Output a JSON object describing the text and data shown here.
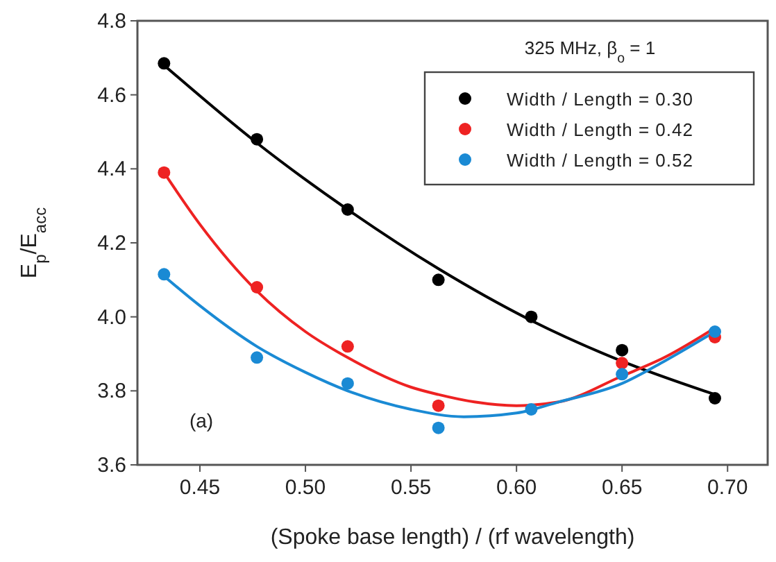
{
  "chart_data": {
    "type": "scatter",
    "xlabel": "(Spoke base length) / (rf wavelength)",
    "ylabel": "E$_{p}$/E$_{acc}$",
    "annotations": [
      "325 MHz, β$_{o}$ = 1",
      "(a)"
    ],
    "x": [
      0.433,
      0.477,
      0.52,
      0.563,
      0.607,
      0.65,
      0.694
    ],
    "series": [
      {
        "name": "Width / Length = 0.30",
        "color": "#000000",
        "values": [
          4.685,
          4.48,
          4.29,
          4.1,
          4.0,
          3.91,
          3.78
        ]
      },
      {
        "name": "Width / Length = 0.42",
        "color": "#ee2222",
        "values": [
          4.39,
          4.08,
          3.92,
          3.76,
          null,
          3.875,
          3.945
        ]
      },
      {
        "name": "Width / Length = 0.52",
        "color": "#1a8ad4",
        "values": [
          4.115,
          3.89,
          3.82,
          3.7,
          3.75,
          3.845,
          3.96
        ]
      },
      {
        "type": "line",
        "marker": "none",
        "color": "#000000",
        "x": [
          0.433,
          0.477,
          0.52,
          0.563,
          0.607,
          0.65,
          0.694
        ],
        "values": [
          4.68,
          4.47,
          4.29,
          4.13,
          3.99,
          3.88,
          3.79
        ]
      },
      {
        "type": "line",
        "marker": "none",
        "color": "#ee2222",
        "x": [
          0.433,
          0.45,
          0.477,
          0.5,
          0.52,
          0.55,
          0.563,
          0.58,
          0.6,
          0.62,
          0.65,
          0.67,
          0.694
        ],
        "values": [
          4.39,
          4.25,
          4.07,
          3.96,
          3.89,
          3.81,
          3.79,
          3.77,
          3.76,
          3.77,
          3.84,
          3.89,
          3.97
        ]
      },
      {
        "type": "line",
        "marker": "none",
        "color": "#1a8ad4",
        "x": [
          0.433,
          0.45,
          0.477,
          0.5,
          0.52,
          0.55,
          0.575,
          0.6,
          0.62,
          0.65,
          0.67,
          0.694
        ],
        "values": [
          4.11,
          4.03,
          3.92,
          3.85,
          3.8,
          3.75,
          3.73,
          3.74,
          3.77,
          3.82,
          3.88,
          3.96
        ]
      }
    ],
    "xlim": [
      0.4204,
      0.719
    ],
    "xticks": [
      0.45,
      {
        "value": 0.5,
        "label": "0.50"
      },
      0.55,
      {
        "value": 0.6,
        "label": "0.60"
      },
      0.65,
      {
        "value": 0.7,
        "label": "0.70"
      }
    ],
    "ylim": [
      3.6,
      4.8
    ],
    "yticks": [
      3.6,
      3.8,
      {
        "value": 4,
        "label": "4.0"
      },
      4.2,
      4.4,
      4.6,
      4.8
    ],
    "grid": false,
    "legend": "top right",
    "marker": "circle",
    "line_style": "solid"
  }
}
